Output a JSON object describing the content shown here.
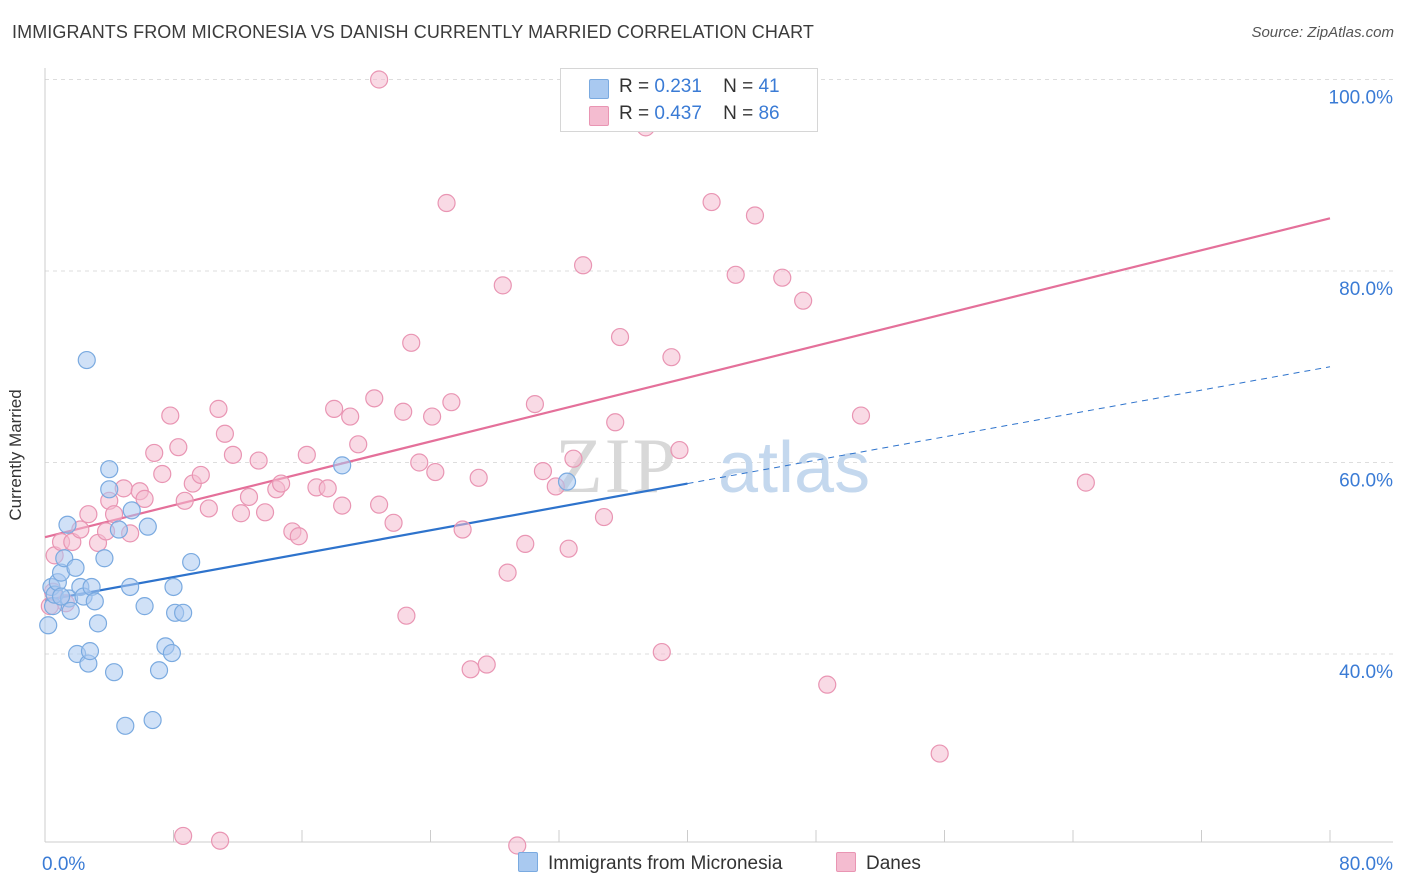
{
  "title": "IMMIGRANTS FROM MICRONESIA VS DANISH CURRENTLY MARRIED CORRELATION CHART",
  "source": "Source: ZipAtlas.com",
  "watermark": {
    "zip": "ZIP",
    "atlas": "atlas"
  },
  "legend_top": [
    {
      "r_label": "R =",
      "r_value": "0.231",
      "n_label": "N =",
      "n_value": "41"
    },
    {
      "r_label": "R =",
      "r_value": "0.437",
      "n_label": "N =",
      "n_value": "86"
    }
  ],
  "legend_bottom": [
    "Immigrants from Micronesia",
    "Danes"
  ],
  "colors": {
    "blue_fill": "#a9c9f0",
    "blue_stroke": "#7aaae0",
    "blue_line": "#2e73cc",
    "pink_fill": "#f4bcd0",
    "pink_stroke": "#e995b3",
    "pink_line": "#e4709a",
    "grid": "#dddddd",
    "tick_text": "#3a7bd5"
  },
  "chart_data": {
    "type": "scatter",
    "title": "IMMIGRANTS FROM MICRONESIA VS DANISH CURRENTLY MARRIED CORRELATION CHART",
    "xlabel": "",
    "ylabel": "Currently Married",
    "xlim": [
      0,
      80
    ],
    "ylim": [
      20,
      102
    ],
    "x_tick_labels": [
      "0.0%",
      "80.0%"
    ],
    "y_ticks": [
      40,
      60,
      80,
      100
    ],
    "y_tick_labels": [
      "40.0%",
      "60.0%",
      "80.0%",
      "100.0%"
    ],
    "grid": true,
    "series": [
      {
        "name": "Immigrants from Micronesia",
        "color": "blue",
        "r": 0.231,
        "n": 41,
        "trend": {
          "x0": 0,
          "y0": 45.6,
          "x1": 40,
          "y1": 57.8,
          "dashed_to_x": 80,
          "dashed_to_y": 70.0
        },
        "points": [
          [
            0.2,
            43.0
          ],
          [
            0.4,
            47.0
          ],
          [
            0.5,
            45.0
          ],
          [
            0.6,
            46.2
          ],
          [
            0.8,
            47.5
          ],
          [
            1.0,
            48.5
          ],
          [
            1.2,
            50.0
          ],
          [
            1.4,
            53.5
          ],
          [
            1.5,
            45.8
          ],
          [
            1.6,
            44.5
          ],
          [
            1.9,
            49.0
          ],
          [
            2.0,
            40.0
          ],
          [
            2.2,
            47.0
          ],
          [
            2.4,
            46.0
          ],
          [
            2.7,
            39.0
          ],
          [
            2.8,
            40.3
          ],
          [
            2.9,
            47.0
          ],
          [
            3.1,
            45.5
          ],
          [
            3.3,
            43.2
          ],
          [
            3.7,
            50.0
          ],
          [
            4.0,
            57.2
          ],
          [
            4.3,
            38.1
          ],
          [
            4.6,
            53.0
          ],
          [
            5.0,
            32.5
          ],
          [
            5.3,
            47.0
          ],
          [
            5.4,
            55.0
          ],
          [
            6.2,
            45.0
          ],
          [
            6.4,
            53.3
          ],
          [
            6.7,
            33.1
          ],
          [
            7.1,
            38.3
          ],
          [
            7.5,
            40.8
          ],
          [
            7.9,
            40.1
          ],
          [
            8.0,
            47.0
          ],
          [
            8.1,
            44.3
          ],
          [
            8.6,
            44.3
          ],
          [
            9.1,
            49.6
          ],
          [
            18.5,
            59.7
          ],
          [
            32.5,
            58.0
          ],
          [
            2.6,
            70.7
          ],
          [
            4.0,
            59.3
          ],
          [
            1.0,
            46.0
          ]
        ]
      },
      {
        "name": "Danes",
        "color": "pink",
        "r": 0.437,
        "n": 86,
        "trend": {
          "x0": 0,
          "y0": 52.2,
          "x1": 80,
          "y1": 85.5
        },
        "points": [
          [
            0.3,
            45.0
          ],
          [
            0.5,
            46.5
          ],
          [
            0.6,
            50.3
          ],
          [
            1.0,
            51.7
          ],
          [
            1.3,
            45.3
          ],
          [
            1.7,
            51.7
          ],
          [
            2.2,
            53.0
          ],
          [
            2.7,
            54.6
          ],
          [
            3.3,
            51.6
          ],
          [
            3.8,
            52.8
          ],
          [
            4.0,
            56.0
          ],
          [
            4.3,
            54.6
          ],
          [
            4.9,
            57.3
          ],
          [
            5.3,
            52.6
          ],
          [
            5.9,
            57.0
          ],
          [
            6.2,
            56.2
          ],
          [
            6.8,
            61.0
          ],
          [
            7.3,
            58.8
          ],
          [
            7.8,
            64.9
          ],
          [
            8.3,
            61.6
          ],
          [
            8.7,
            56.0
          ],
          [
            9.2,
            57.8
          ],
          [
            9.7,
            58.7
          ],
          [
            10.2,
            55.2
          ],
          [
            10.8,
            65.6
          ],
          [
            11.2,
            63.0
          ],
          [
            11.7,
            60.8
          ],
          [
            12.2,
            54.7
          ],
          [
            12.7,
            56.4
          ],
          [
            13.3,
            60.2
          ],
          [
            13.7,
            54.8
          ],
          [
            14.4,
            57.2
          ],
          [
            14.7,
            57.8
          ],
          [
            15.4,
            52.8
          ],
          [
            15.8,
            52.3
          ],
          [
            16.3,
            60.8
          ],
          [
            16.9,
            57.4
          ],
          [
            17.6,
            57.3
          ],
          [
            18.0,
            65.6
          ],
          [
            18.5,
            55.5
          ],
          [
            19.0,
            64.8
          ],
          [
            19.5,
            61.9
          ],
          [
            20.5,
            66.7
          ],
          [
            20.8,
            55.6
          ],
          [
            21.7,
            53.7
          ],
          [
            22.3,
            65.3
          ],
          [
            22.8,
            72.5
          ],
          [
            23.3,
            60.0
          ],
          [
            24.1,
            64.8
          ],
          [
            24.3,
            59.0
          ],
          [
            25.3,
            66.3
          ],
          [
            26.0,
            53.0
          ],
          [
            26.5,
            38.4
          ],
          [
            27.0,
            58.4
          ],
          [
            27.5,
            38.9
          ],
          [
            28.5,
            78.5
          ],
          [
            28.8,
            48.5
          ],
          [
            29.4,
            20.0
          ],
          [
            29.9,
            51.5
          ],
          [
            30.5,
            66.1
          ],
          [
            31.0,
            59.1
          ],
          [
            31.8,
            57.5
          ],
          [
            32.6,
            51.0
          ],
          [
            32.9,
            60.4
          ],
          [
            33.5,
            80.6
          ],
          [
            34.8,
            54.3
          ],
          [
            35.5,
            64.2
          ],
          [
            35.8,
            73.1
          ],
          [
            37.4,
            95.0
          ],
          [
            38.4,
            40.2
          ],
          [
            39.0,
            71.0
          ],
          [
            39.5,
            61.3
          ],
          [
            41.5,
            87.2
          ],
          [
            43.0,
            79.6
          ],
          [
            44.2,
            85.8
          ],
          [
            45.9,
            79.3
          ],
          [
            47.2,
            76.9
          ],
          [
            48.7,
            36.8
          ],
          [
            50.8,
            64.9
          ],
          [
            55.7,
            29.6
          ],
          [
            64.8,
            57.9
          ],
          [
            8.6,
            21.0
          ],
          [
            22.5,
            44.0
          ],
          [
            10.9,
            20.5
          ],
          [
            20.8,
            100.0
          ],
          [
            25.0,
            87.1
          ]
        ]
      }
    ]
  }
}
